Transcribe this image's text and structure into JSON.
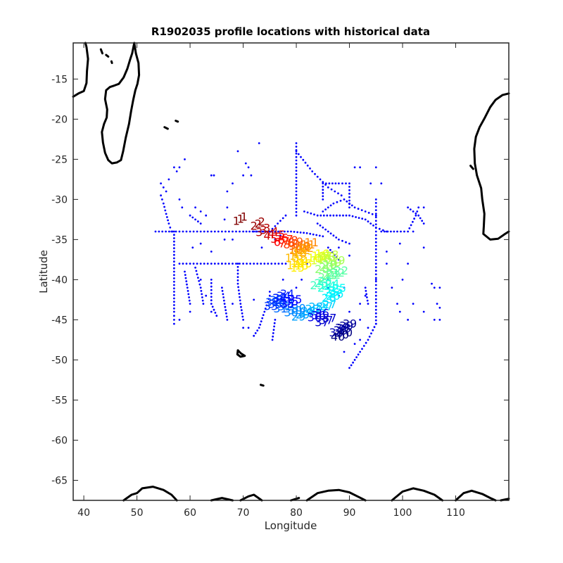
{
  "chart_data": {
    "type": "scatter",
    "title": "R1902035 profile locations with historical data",
    "xlabel": "Longitude",
    "ylabel": "Latitude",
    "xlim": [
      38,
      120
    ],
    "ylim": [
      -67.5,
      -10.5
    ],
    "xticks": [
      40,
      50,
      60,
      70,
      80,
      90,
      100,
      110
    ],
    "yticks": [
      -15,
      -20,
      -25,
      -30,
      -35,
      -40,
      -45,
      -50,
      -55,
      -60,
      -65
    ],
    "grid": false,
    "colors": {
      "historical": "#0000ff",
      "coastline": "#000000",
      "axes": "#262626"
    },
    "historical_tracks": [
      [
        [
          53.5,
          -34
        ],
        [
          58,
          -34
        ],
        [
          62,
          -34
        ],
        [
          66,
          -34
        ],
        [
          70,
          -34
        ],
        [
          73,
          -34
        ],
        [
          76,
          -34
        ],
        [
          79,
          -34
        ],
        [
          82,
          -34.2
        ],
        [
          85,
          -34.6
        ]
      ],
      [
        [
          57,
          -34
        ],
        [
          57,
          -36.5
        ],
        [
          57,
          -39
        ],
        [
          57,
          -41.5
        ],
        [
          57,
          -44
        ],
        [
          57,
          -45.5
        ]
      ],
      [
        [
          58,
          -38
        ],
        [
          62,
          -38
        ],
        [
          66,
          -38
        ],
        [
          70,
          -38
        ],
        [
          74,
          -38
        ],
        [
          78,
          -38
        ]
      ],
      [
        [
          54.5,
          -29.5
        ],
        [
          55,
          -30.5
        ],
        [
          55.5,
          -31.8
        ],
        [
          56,
          -33
        ],
        [
          56.5,
          -34
        ]
      ],
      [
        [
          60,
          -32
        ],
        [
          62,
          -33
        ]
      ],
      [
        [
          81.5,
          -31.5
        ],
        [
          84,
          -32
        ],
        [
          87,
          -32
        ],
        [
          90,
          -32
        ],
        [
          93,
          -32.5
        ],
        [
          95,
          -33.5
        ],
        [
          97,
          -34
        ]
      ],
      [
        [
          85,
          -31.5
        ],
        [
          87,
          -30.5
        ],
        [
          89,
          -30
        ],
        [
          91,
          -31
        ],
        [
          93,
          -31.5
        ],
        [
          95,
          -32
        ]
      ],
      [
        [
          80,
          -23
        ],
        [
          80,
          -26
        ],
        [
          80,
          -29
        ],
        [
          80,
          -32
        ]
      ],
      [
        [
          80,
          -24
        ],
        [
          83,
          -26.5
        ],
        [
          86,
          -28.5
        ],
        [
          88.5,
          -29.5
        ]
      ],
      [
        [
          85,
          -30
        ],
        [
          85,
          -28
        ],
        [
          88,
          -28
        ],
        [
          90,
          -28
        ],
        [
          90,
          -31
        ]
      ],
      [
        [
          95,
          -30
        ],
        [
          95,
          -34
        ],
        [
          95,
          -38
        ],
        [
          95,
          -42
        ],
        [
          95,
          -45.5
        ]
      ],
      [
        [
          95,
          -45.5
        ],
        [
          93.5,
          -47.5
        ],
        [
          92,
          -49
        ],
        [
          91,
          -50
        ],
        [
          90,
          -51
        ]
      ],
      [
        [
          96,
          -34
        ],
        [
          99,
          -34
        ],
        [
          101,
          -34
        ],
        [
          102.5,
          -32
        ],
        [
          103,
          -31
        ]
      ],
      [
        [
          101,
          -31
        ],
        [
          103,
          -32
        ],
        [
          104,
          -33
        ]
      ],
      [
        [
          78,
          -32
        ],
        [
          75,
          -34
        ],
        [
          72,
          -34
        ]
      ],
      [
        [
          75,
          -42
        ],
        [
          74,
          -44
        ],
        [
          73,
          -46
        ],
        [
          72,
          -47
        ]
      ],
      [
        [
          76,
          -45
        ],
        [
          75.5,
          -47.5
        ]
      ],
      [
        [
          64,
          -40
        ],
        [
          64,
          -43
        ],
        [
          65,
          -44.5
        ]
      ],
      [
        [
          61,
          -38.5
        ],
        [
          62,
          -41
        ],
        [
          62.5,
          -43
        ]
      ],
      [
        [
          69,
          -38
        ],
        [
          69,
          -40.5
        ],
        [
          69.5,
          -43
        ],
        [
          70,
          -45
        ]
      ],
      [
        [
          84,
          -33
        ],
        [
          86,
          -34
        ],
        [
          88,
          -35
        ],
        [
          90,
          -35.5
        ]
      ],
      [
        [
          59,
          -39
        ],
        [
          59.5,
          -41
        ],
        [
          60,
          -43
        ]
      ],
      [
        [
          66,
          -41
        ],
        [
          66.5,
          -43
        ],
        [
          67,
          -45
        ]
      ],
      [
        [
          86,
          -36
        ],
        [
          88,
          -37.5
        ]
      ],
      [
        [
          93,
          -41
        ],
        [
          93.5,
          -43
        ]
      ]
    ],
    "historical_points": [
      [
        54.5,
        -28
      ],
      [
        55,
        -28.5
      ],
      [
        55.5,
        -29
      ],
      [
        56,
        -27.5
      ],
      [
        57,
        -26
      ],
      [
        57.5,
        -26.5
      ],
      [
        58,
        -26
      ],
      [
        59,
        -25
      ],
      [
        64,
        -27
      ],
      [
        64.5,
        -27
      ],
      [
        66.5,
        -32.5
      ],
      [
        67,
        -29
      ],
      [
        67,
        -31
      ],
      [
        70,
        -27
      ],
      [
        69,
        -24
      ],
      [
        70.5,
        -25.5
      ],
      [
        73,
        -23
      ],
      [
        71,
        -26
      ],
      [
        71.5,
        -27
      ],
      [
        68,
        -28
      ],
      [
        66,
        -38
      ],
      [
        68,
        -43
      ],
      [
        71,
        -46
      ],
      [
        72,
        -42.5
      ],
      [
        75,
        -41.5
      ],
      [
        60,
        -44
      ],
      [
        58,
        -45
      ],
      [
        64,
        -44
      ],
      [
        63,
        -42
      ],
      [
        62,
        -40
      ],
      [
        70,
        -46
      ],
      [
        77.5,
        -40
      ],
      [
        82,
        -38
      ],
      [
        86,
        -41
      ],
      [
        88,
        -42
      ],
      [
        90,
        -44
      ],
      [
        92,
        -43
      ],
      [
        93,
        -42
      ],
      [
        97,
        -36.5
      ],
      [
        98,
        -41
      ],
      [
        99,
        -43
      ],
      [
        100,
        -40
      ],
      [
        101,
        -38
      ],
      [
        99.5,
        -44
      ],
      [
        101,
        -45
      ],
      [
        102,
        -43
      ],
      [
        104,
        -44
      ],
      [
        105.5,
        -40.5
      ],
      [
        106,
        -41
      ],
      [
        107,
        -41
      ],
      [
        106,
        -45
      ],
      [
        107,
        -45
      ],
      [
        107,
        -43.5
      ],
      [
        106.5,
        -43
      ],
      [
        104,
        -36
      ],
      [
        104,
        -31
      ],
      [
        97,
        -38
      ],
      [
        95,
        -40
      ],
      [
        91,
        -48
      ],
      [
        92,
        -47.5
      ],
      [
        89,
        -49
      ],
      [
        90,
        -37
      ],
      [
        88,
        -36
      ],
      [
        99.5,
        -35.5
      ],
      [
        102,
        -34
      ],
      [
        96,
        -28
      ],
      [
        94,
        -28
      ],
      [
        92,
        -26
      ],
      [
        95,
        -26
      ],
      [
        91,
        -26
      ],
      [
        86,
        -40
      ],
      [
        89,
        -41
      ],
      [
        92,
        -45
      ],
      [
        93.5,
        -46
      ],
      [
        61,
        -31
      ],
      [
        62,
        -31.5
      ],
      [
        63,
        -32
      ],
      [
        66.5,
        -35
      ],
      [
        68,
        -35
      ],
      [
        73.5,
        -36
      ],
      [
        76,
        -35
      ],
      [
        77,
        -34.5
      ],
      [
        60.5,
        -36
      ],
      [
        62,
        -35.5
      ],
      [
        64,
        -36.5
      ],
      [
        58,
        -30
      ],
      [
        58.5,
        -31
      ],
      [
        83,
        -44
      ],
      [
        81,
        -40
      ],
      [
        80,
        -41
      ]
    ],
    "profiles": [
      {
        "n": 1,
        "lon": 69.5,
        "lat": -32.4
      },
      {
        "n": 2,
        "lon": 72.8,
        "lat": -33.0
      },
      {
        "n": 3,
        "lon": 73.8,
        "lat": -33.8
      },
      {
        "n": 4,
        "lon": 75.3,
        "lat": -34.2
      },
      {
        "n": 5,
        "lon": 76.6,
        "lat": -34.6
      },
      {
        "n": 6,
        "lon": 77.2,
        "lat": -35.0
      },
      {
        "n": 7,
        "lon": 78.1,
        "lat": -35.2
      },
      {
        "n": 8,
        "lon": 79.0,
        "lat": -35.3
      },
      {
        "n": 9,
        "lon": 80.0,
        "lat": -35.5
      },
      {
        "n": 10,
        "lon": 80.7,
        "lat": -36.0
      },
      {
        "n": 11,
        "lon": 82.2,
        "lat": -35.6
      },
      {
        "n": 12,
        "lon": 81.3,
        "lat": -36.3
      },
      {
        "n": 13,
        "lon": 80.0,
        "lat": -37.0
      },
      {
        "n": 14,
        "lon": 80.3,
        "lat": -37.9
      },
      {
        "n": 15,
        "lon": 81.0,
        "lat": -38.2
      },
      {
        "n": 16,
        "lon": 84.2,
        "lat": -37.0
      },
      {
        "n": 17,
        "lon": 84.8,
        "lat": -37.3
      },
      {
        "n": 18,
        "lon": 86.0,
        "lat": -37.1
      },
      {
        "n": 19,
        "lon": 87.2,
        "lat": -37.8
      },
      {
        "n": 20,
        "lon": 85.6,
        "lat": -38.4
      },
      {
        "n": 21,
        "lon": 86.2,
        "lat": -39.4
      },
      {
        "n": 22,
        "lon": 87.8,
        "lat": -39.1
      },
      {
        "n": 23,
        "lon": 84.7,
        "lat": -40.4
      },
      {
        "n": 24,
        "lon": 86.1,
        "lat": -40.7
      },
      {
        "n": 25,
        "lon": 87.4,
        "lat": -41.3
      },
      {
        "n": 26,
        "lon": 86.9,
        "lat": -42.0
      },
      {
        "n": 27,
        "lon": 85.6,
        "lat": -43.3
      },
      {
        "n": 28,
        "lon": 83.0,
        "lat": -43.6
      },
      {
        "n": 29,
        "lon": 81.2,
        "lat": -44.3
      },
      {
        "n": 30,
        "lon": 79.8,
        "lat": -43.8
      },
      {
        "n": 31,
        "lon": 77.8,
        "lat": -43.3
      },
      {
        "n": 32,
        "lon": 76.3,
        "lat": -42.5
      },
      {
        "n": 33,
        "lon": 76.0,
        "lat": -43.0
      },
      {
        "n": 34,
        "lon": 77.6,
        "lat": -42.0
      },
      {
        "n": 35,
        "lon": 79.1,
        "lat": -42.7
      },
      {
        "n": 36,
        "lon": 84.2,
        "lat": -44.4
      },
      {
        "n": 37,
        "lon": 85.6,
        "lat": -45.0
      },
      {
        "n": 38,
        "lon": 88.3,
        "lat": -46.3
      },
      {
        "n": 39,
        "lon": 89.4,
        "lat": -45.7
      },
      {
        "n": 40,
        "lon": 88.6,
        "lat": -46.8
      }
    ],
    "coastlines": [
      [
        [
          38,
          -17.2
        ],
        [
          39,
          -16.8
        ],
        [
          40,
          -16.5
        ],
        [
          40.5,
          -15.5
        ],
        [
          40.6,
          -14
        ],
        [
          40.8,
          -12.5
        ],
        [
          40.5,
          -11
        ],
        [
          40.3,
          -10.5
        ]
      ],
      [
        [
          49.5,
          -10.5
        ],
        [
          49.8,
          -11.8
        ],
        [
          50.3,
          -13
        ],
        [
          50.4,
          -14.5
        ],
        [
          50.1,
          -15.6
        ],
        [
          49.7,
          -16.4
        ],
        [
          49.3,
          -17.6
        ],
        [
          48.9,
          -19
        ],
        [
          48.5,
          -20.6
        ],
        [
          47.9,
          -22.3
        ],
        [
          47.4,
          -24
        ],
        [
          47.0,
          -25.1
        ],
        [
          46.2,
          -25.4
        ],
        [
          45.3,
          -25.5
        ],
        [
          44.6,
          -25.1
        ],
        [
          44.0,
          -24.2
        ],
        [
          43.6,
          -22.9
        ],
        [
          43.4,
          -21.6
        ],
        [
          43.8,
          -20.6
        ],
        [
          44.3,
          -19.8
        ],
        [
          44.4,
          -18.8
        ],
        [
          44.0,
          -17.5
        ],
        [
          44.2,
          -16.4
        ],
        [
          44.9,
          -16.0
        ],
        [
          45.8,
          -15.8
        ],
        [
          46.6,
          -15.6
        ],
        [
          47.5,
          -14.8
        ],
        [
          48.2,
          -13.7
        ],
        [
          48.7,
          -12.6
        ],
        [
          49.1,
          -11.8
        ],
        [
          49.5,
          -10.5
        ]
      ],
      [
        [
          43.2,
          -11.3
        ],
        [
          43.5,
          -11.8
        ]
      ],
      [
        [
          44.2,
          -12.0
        ],
        [
          44.6,
          -12.2
        ]
      ],
      [
        [
          45.2,
          -12.8
        ],
        [
          45.3,
          -13.0
        ]
      ],
      [
        [
          55.2,
          -21.0
        ],
        [
          55.8,
          -21.2
        ]
      ],
      [
        [
          57.3,
          -20.2
        ],
        [
          57.7,
          -20.3
        ]
      ],
      [
        [
          120,
          -16.8
        ],
        [
          118.8,
          -17
        ],
        [
          117.5,
          -17.6
        ],
        [
          116.5,
          -18.5
        ],
        [
          115.5,
          -19.8
        ],
        [
          114.5,
          -21.0
        ],
        [
          113.8,
          -22.2
        ],
        [
          113.5,
          -23.7
        ],
        [
          113.6,
          -25.5
        ],
        [
          114.0,
          -27
        ],
        [
          114.8,
          -28.6
        ],
        [
          115.0,
          -30
        ],
        [
          115.4,
          -31.8
        ],
        [
          115.3,
          -33.3
        ],
        [
          115.2,
          -34.3
        ],
        [
          116.5,
          -35.0
        ],
        [
          118,
          -34.9
        ],
        [
          119.3,
          -34.3
        ],
        [
          120,
          -34.0
        ]
      ],
      [
        [
          112.8,
          -25.8
        ],
        [
          113.3,
          -26.2
        ]
      ],
      [
        [
          69.0,
          -48.8
        ],
        [
          69.6,
          -49.2
        ],
        [
          70.3,
          -49.5
        ],
        [
          69.5,
          -49.6
        ],
        [
          68.9,
          -49.3
        ],
        [
          69.0,
          -48.8
        ]
      ],
      [
        [
          73.3,
          -53.1
        ],
        [
          73.8,
          -53.2
        ]
      ],
      [
        [
          47.5,
          -67.5
        ],
        [
          49,
          -66.8
        ],
        [
          50,
          -66.6
        ],
        [
          51,
          -66.0
        ],
        [
          53,
          -65.8
        ],
        [
          55,
          -66.2
        ],
        [
          56.5,
          -66.8
        ],
        [
          57.5,
          -67.5
        ]
      ],
      [
        [
          64,
          -67.5
        ],
        [
          66,
          -67.2
        ],
        [
          68,
          -67.6
        ]
      ],
      [
        [
          69.5,
          -67.5
        ],
        [
          71,
          -67.0
        ],
        [
          72,
          -66.8
        ],
        [
          73.5,
          -67.5
        ]
      ],
      [
        [
          79,
          -67.5
        ],
        [
          80.5,
          -67.2
        ]
      ],
      [
        [
          82,
          -67.5
        ],
        [
          84,
          -66.6
        ],
        [
          86,
          -66.3
        ],
        [
          88,
          -66.2
        ],
        [
          90,
          -66.5
        ],
        [
          91.5,
          -67.0
        ],
        [
          93,
          -67.5
        ]
      ],
      [
        [
          98,
          -67.5
        ],
        [
          100,
          -66.4
        ],
        [
          102,
          -66.0
        ],
        [
          104,
          -66.3
        ],
        [
          106,
          -66.8
        ],
        [
          107.5,
          -67.5
        ]
      ],
      [
        [
          110,
          -67.5
        ],
        [
          111.5,
          -66.6
        ],
        [
          113,
          -66.3
        ],
        [
          115,
          -66.7
        ],
        [
          116.5,
          -67.2
        ],
        [
          117.5,
          -67.5
        ]
      ],
      [
        [
          118.5,
          -67.5
        ],
        [
          120,
          -67.3
        ]
      ]
    ]
  }
}
